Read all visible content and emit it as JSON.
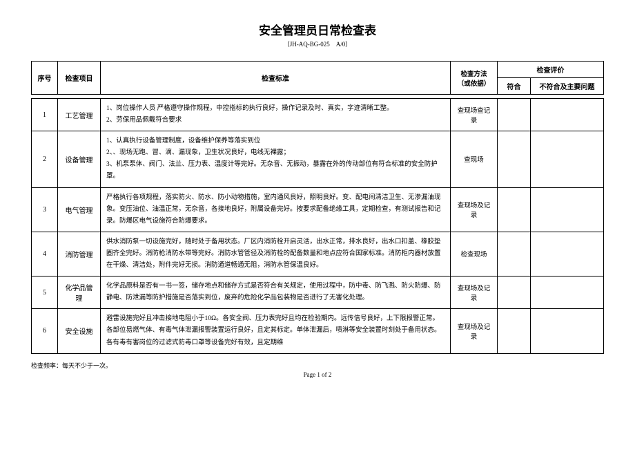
{
  "title": "安全管理员日常检查表",
  "doc_code": "（JH-AQ-BG-025　A/0）",
  "headers": {
    "seq": "序号",
    "item": "检查项目",
    "std": "检查标准",
    "method": "检查方法（或依据）",
    "eval": "检查评价",
    "fit": "符合",
    "nonfit": "不符合及主要问题"
  },
  "rows": [
    {
      "seq": "1",
      "item": "工艺管理",
      "std": "1、岗位操作人员 严格遵守操作规程，中控指标的执行良好，操作记录及时、真实，字迹清晰工整。\n2、劳保用品佩戴符合要求",
      "method": "查现场查记录"
    },
    {
      "seq": "2",
      "item": "设备管理",
      "std": "1、认真执行设备管理制度，设备维护保养等落实到位\n2、、现场无跑、冒、滴、漏现象，卫生状况良好，电线无裸露；\n3、机泵泵体、阀门、法兰、压力表、温度计等完好。无杂音、无振动，暴露在外的传动部位有符合标准的安全防护罩。",
      "method": "查现场"
    },
    {
      "seq": "3",
      "item": "电气管理",
      "std": "严格执行各项规程，落实防火、防水、防小动物措施，室内通风良好，照明良好。变、配电间清洁卫生、无渗漏油现象。变压油位、油温正常，无杂音，各接地良好，附属设备完好。按要求配备绝缘工具，定期检查，有测试报告和记录。防爆区电气设施符合防爆要求。",
      "method": "查现场及记录"
    },
    {
      "seq": "4",
      "item": "消防管理",
      "std": "供水消防泵一切设施完好，随时处于备用状态。厂区内消防栓开启灵活，出水正常，排水良好，出水口扣盖、橡胶垫圈齐全完好。消防枪消防水带等完好。消防水管管径及消防栓的配备数量和地点应符合国家标准。消防柜内器材放置在干燥、清洁处，附件完好无损。消防通道畅通无阻，消防水管保温良好。",
      "method": "检查现场"
    },
    {
      "seq": "5",
      "item": "化学品管理",
      "std": "化学品原料是否有一书一签，储存地点和储存方式是否符合有关规定，使用过程中，防中毒、防飞溅、防火防爆、防静电、防泄漏等防护措施是否落实到位，废弃的危险化学品包装物是否进行了无害化处理。",
      "method": "查现场及记录"
    },
    {
      "seq": "6",
      "item": "安全设施",
      "std": "避雷设施完好且冲击接地电阻小于10Ω。各安全阀、压力表完好且均在检验期内。远传信号良好，上下限报警正常。各部位易燃气体、有毒气体泄漏报警装置运行良好，且定其标定。单体泄漏后，喷淋等安全装置时刻处于备用状态。各有毒有害岗位的过滤式防毒口罩等设备完好有效，且定期维",
      "method": "查现场及记录"
    }
  ],
  "footer_note": "检查频率：每天不少于一次。",
  "page_num": "Page 1 of 2"
}
